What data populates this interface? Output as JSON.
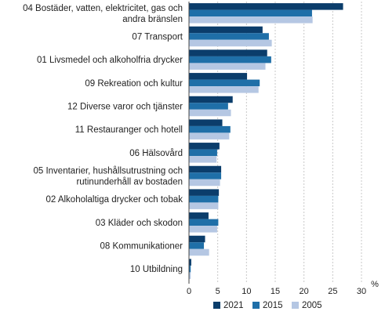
{
  "chart_data": {
    "type": "bar",
    "orientation": "horizontal",
    "categories": [
      [
        "04 Bostäder, vatten, elektricitet, gas och",
        "andra bränslen"
      ],
      [
        "07 Transport"
      ],
      [
        "01 Livsmedel och alkoholfria drycker"
      ],
      [
        "09 Rekreation och kultur"
      ],
      [
        "12 Diverse varor och tjänster"
      ],
      [
        "11 Restauranger och hotell"
      ],
      [
        "06 Hälsovård"
      ],
      [
        "05 Inventarier, hushållsutrustning och",
        "rutinunderhåll av bostaden"
      ],
      [
        "02 Alkoholaltiga drycker och tobak"
      ],
      [
        "03 Kläder och skodon"
      ],
      [
        "08 Kommunikationer"
      ],
      [
        "10 Utbildning"
      ]
    ],
    "series": [
      {
        "name": "2021",
        "color": "#0b3d6b",
        "values": [
          26.8,
          12.8,
          13.6,
          10.1,
          7.6,
          5.8,
          5.3,
          5.6,
          5.2,
          3.4,
          2.8,
          0.4
        ]
      },
      {
        "name": "2015",
        "color": "#1f6fa8",
        "values": [
          21.4,
          13.9,
          14.3,
          12.3,
          6.8,
          7.2,
          4.9,
          5.6,
          5.1,
          5.1,
          2.6,
          0.3
        ]
      },
      {
        "name": "2005",
        "color": "#b5c7e3",
        "values": [
          21.5,
          14.4,
          13.3,
          12.1,
          7.3,
          7.0,
          4.8,
          5.4,
          5.1,
          4.9,
          3.5,
          0.3
        ]
      }
    ],
    "xlabel": "%",
    "xlim": [
      0,
      30
    ],
    "xticks": [
      0,
      5,
      10,
      15,
      20,
      25,
      30
    ],
    "grid": "vertical dotted",
    "legend_position": "bottom-center"
  }
}
